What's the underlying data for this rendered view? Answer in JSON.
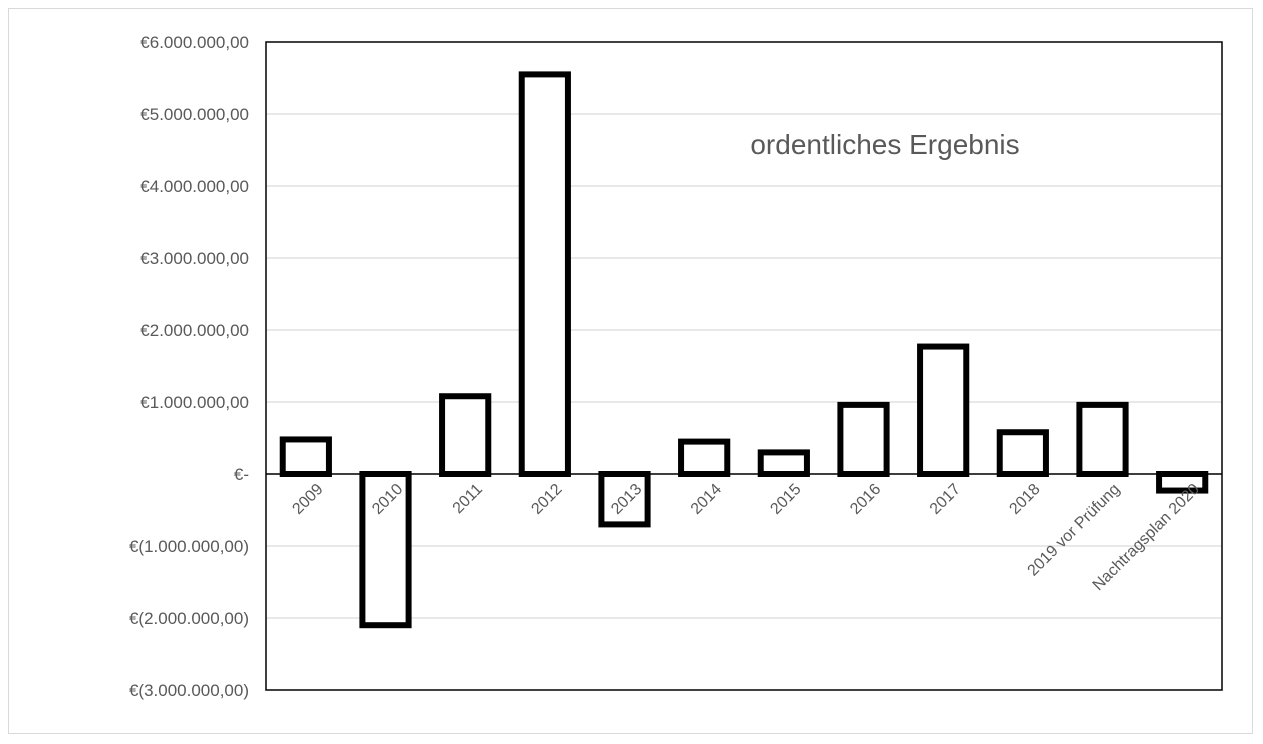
{
  "chart_data": {
    "type": "bar",
    "title": "ordentliches Ergebnis",
    "categories": [
      "2009",
      "2010",
      "2011",
      "2012",
      "2013",
      "2014",
      "2015",
      "2016",
      "2017",
      "2018",
      "2019 vor Prüfung",
      "Nachtragsplan 2020"
    ],
    "values": [
      480000,
      -2100000,
      1080000,
      5550000,
      -700000,
      450000,
      300000,
      960000,
      1770000,
      580000,
      960000,
      -230000
    ],
    "ylim": [
      -3000000,
      6000000
    ],
    "yticks": [
      6000000,
      5000000,
      4000000,
      3000000,
      2000000,
      1000000,
      0,
      -1000000,
      -2000000,
      -3000000
    ],
    "ytick_labels": [
      "€6.000.000,00",
      "€5.000.000,00",
      "€4.000.000,00",
      "€3.000.000,00",
      "€2.000.000,00",
      "€1.000.000,00",
      "€-",
      "€(1.000.000,00)",
      "€(2.000.000,00)",
      "€(3.000.000,00)"
    ],
    "grid": true,
    "bar_fill": "#ffffff",
    "bar_stroke": "#000000",
    "xlabel": "",
    "ylabel": ""
  }
}
